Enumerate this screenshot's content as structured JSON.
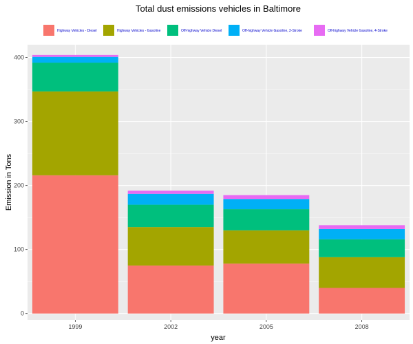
{
  "chart_data": {
    "type": "bar",
    "stacked": true,
    "title": "Total dust emissions vehicles in Baltimore",
    "xlabel": "year",
    "ylabel": "Emission in Tons",
    "categories": [
      "1999",
      "2002",
      "2005",
      "2008"
    ],
    "ylim": [
      -10,
      420
    ],
    "yticks": [
      0,
      100,
      200,
      300,
      400
    ],
    "grid": true,
    "legend_position": "top",
    "series": [
      {
        "name": "Highway Vehicles - Diesel",
        "color": "#F8766D",
        "values": [
          216,
          75,
          78,
          40
        ]
      },
      {
        "name": "Highway Vehicles - Gasoline",
        "color": "#A3A500",
        "values": [
          131,
          60,
          52,
          48
        ]
      },
      {
        "name": "Off-highway Vehicle Diesel",
        "color": "#00BF7D",
        "values": [
          45,
          35,
          33,
          28
        ]
      },
      {
        "name": "Off-highway Vehicle Gasoline, 2-Stroke",
        "color": "#00B0F6",
        "values": [
          9,
          17,
          16,
          16
        ]
      },
      {
        "name": "Off-highway Vehicle Gasoline, 4-Stroke",
        "color": "#E76BF3",
        "values": [
          3,
          5,
          6,
          6
        ]
      }
    ]
  }
}
